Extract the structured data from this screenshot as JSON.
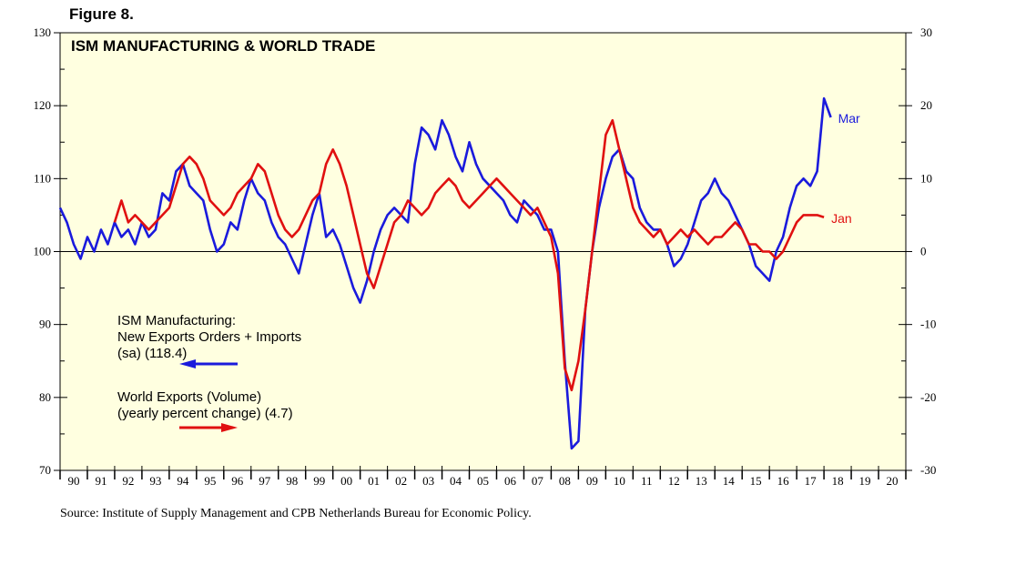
{
  "figure_label": "Figure 8.",
  "source": "Source: Institute of Supply Management and CPB Netherlands Bureau for Economic Policy.",
  "colors": {
    "ism": "#1a1adc",
    "world": "#e01010",
    "plot_bg": "#ffffe0"
  },
  "chart_data": {
    "type": "line",
    "title": "ISM MANUFACTURING & WORLD TRADE",
    "xlim": [
      1990,
      2021
    ],
    "ylim_left": [
      70,
      130
    ],
    "ylim_right": [
      -30,
      30
    ],
    "left_ticks": [
      "70",
      "80",
      "90",
      "100",
      "110",
      "120",
      "130"
    ],
    "right_ticks": [
      "-30",
      "-20",
      "-10",
      "0",
      "10",
      "20",
      "30"
    ],
    "x_tick_labels": [
      "90",
      "91",
      "92",
      "93",
      "94",
      "95",
      "96",
      "97",
      "98",
      "99",
      "00",
      "01",
      "02",
      "03",
      "04",
      "05",
      "06",
      "07",
      "08",
      "09",
      "10",
      "11",
      "12",
      "13",
      "14",
      "15",
      "16",
      "17",
      "18",
      "19",
      "20"
    ],
    "reference_line_right": 0,
    "series": [
      {
        "name": "ISM Manufacturing: New Exports Orders + Imports (sa) (118.4)",
        "axis": "left",
        "end_label": "Mar",
        "x": [
          1990.0,
          1990.25,
          1990.5,
          1990.75,
          1991.0,
          1991.25,
          1991.5,
          1991.75,
          1992.0,
          1992.25,
          1992.5,
          1992.75,
          1993.0,
          1993.25,
          1993.5,
          1993.75,
          1994.0,
          1994.25,
          1994.5,
          1994.75,
          1995.0,
          1995.25,
          1995.5,
          1995.75,
          1996.0,
          1996.25,
          1996.5,
          1996.75,
          1997.0,
          1997.25,
          1997.5,
          1997.75,
          1998.0,
          1998.25,
          1998.5,
          1998.75,
          1999.0,
          1999.25,
          1999.5,
          1999.75,
          2000.0,
          2000.25,
          2000.5,
          2000.75,
          2001.0,
          2001.25,
          2001.5,
          2001.75,
          2002.0,
          2002.25,
          2002.5,
          2002.75,
          2003.0,
          2003.25,
          2003.5,
          2003.75,
          2004.0,
          2004.25,
          2004.5,
          2004.75,
          2005.0,
          2005.25,
          2005.5,
          2005.75,
          2006.0,
          2006.25,
          2006.5,
          2006.75,
          2007.0,
          2007.25,
          2007.5,
          2007.75,
          2008.0,
          2008.25,
          2008.5,
          2008.75,
          2009.0,
          2009.25,
          2009.5,
          2009.75,
          2010.0,
          2010.25,
          2010.5,
          2010.75,
          2011.0,
          2011.25,
          2011.5,
          2011.75,
          2012.0,
          2012.25,
          2012.5,
          2012.75,
          2013.0,
          2013.25,
          2013.5,
          2013.75,
          2014.0,
          2014.25,
          2014.5,
          2014.75,
          2015.0,
          2015.25,
          2015.5,
          2015.75,
          2016.0,
          2016.25,
          2016.5,
          2016.75,
          2017.0,
          2017.25,
          2017.5,
          2017.75,
          2018.0,
          2018.25
        ],
        "values": [
          106,
          104,
          101,
          99,
          102,
          100,
          103,
          101,
          104,
          102,
          103,
          101,
          104,
          102,
          103,
          108,
          107,
          111,
          112,
          109,
          108,
          107,
          103,
          100,
          101,
          104,
          103,
          107,
          110,
          108,
          107,
          104,
          102,
          101,
          99,
          97,
          101,
          105,
          108,
          102,
          103,
          101,
          98,
          95,
          93,
          96,
          100,
          103,
          105,
          106,
          105,
          104,
          112,
          117,
          116,
          114,
          118,
          116,
          113,
          111,
          115,
          112,
          110,
          109,
          108,
          107,
          105,
          104,
          107,
          106,
          105,
          103,
          103,
          100,
          85,
          73,
          74,
          92,
          100,
          106,
          110,
          113,
          114,
          111,
          110,
          106,
          104,
          103,
          103,
          101,
          98,
          99,
          101,
          104,
          107,
          108,
          110,
          108,
          107,
          105,
          103,
          101,
          98,
          97,
          96,
          100,
          102,
          106,
          109,
          110,
          109,
          111,
          121,
          118.4
        ]
      },
      {
        "name": "World Exports (Volume) (yearly percent change) (4.7)",
        "axis": "right",
        "end_label": "Jan",
        "x": [
          1992.0,
          1992.25,
          1992.5,
          1992.75,
          1993.0,
          1993.25,
          1993.5,
          1993.75,
          1994.0,
          1994.25,
          1994.5,
          1994.75,
          1995.0,
          1995.25,
          1995.5,
          1995.75,
          1996.0,
          1996.25,
          1996.5,
          1996.75,
          1997.0,
          1997.25,
          1997.5,
          1997.75,
          1998.0,
          1998.25,
          1998.5,
          1998.75,
          1999.0,
          1999.25,
          1999.5,
          1999.75,
          2000.0,
          2000.25,
          2000.5,
          2000.75,
          2001.0,
          2001.25,
          2001.5,
          2001.75,
          2002.0,
          2002.25,
          2002.5,
          2002.75,
          2003.0,
          2003.25,
          2003.5,
          2003.75,
          2004.0,
          2004.25,
          2004.5,
          2004.75,
          2005.0,
          2005.25,
          2005.5,
          2005.75,
          2006.0,
          2006.25,
          2006.5,
          2006.75,
          2007.0,
          2007.25,
          2007.5,
          2007.75,
          2008.0,
          2008.25,
          2008.5,
          2008.75,
          2009.0,
          2009.25,
          2009.5,
          2009.75,
          2010.0,
          2010.25,
          2010.5,
          2010.75,
          2011.0,
          2011.25,
          2011.5,
          2011.75,
          2012.0,
          2012.25,
          2012.5,
          2012.75,
          2013.0,
          2013.25,
          2013.5,
          2013.75,
          2014.0,
          2014.25,
          2014.5,
          2014.75,
          2015.0,
          2015.25,
          2015.5,
          2015.75,
          2016.0,
          2016.25,
          2016.5,
          2016.75,
          2017.0,
          2017.25,
          2017.5,
          2017.75,
          2018.0
        ],
        "values": [
          4,
          7,
          4,
          5,
          4,
          3,
          4,
          5,
          6,
          9,
          12,
          13,
          12,
          10,
          7,
          6,
          5,
          6,
          8,
          9,
          10,
          12,
          11,
          8,
          5,
          3,
          2,
          3,
          5,
          7,
          8,
          12,
          14,
          12,
          9,
          5,
          1,
          -3,
          -5,
          -2,
          1,
          4,
          5,
          7,
          6,
          5,
          6,
          8,
          9,
          10,
          9,
          7,
          6,
          7,
          8,
          9,
          10,
          9,
          8,
          7,
          6,
          5,
          6,
          4,
          2,
          -3,
          -16,
          -19,
          -15,
          -8,
          0,
          8,
          16,
          18,
          14,
          10,
          6,
          4,
          3,
          2,
          3,
          1,
          2,
          3,
          2,
          3,
          2,
          1,
          2,
          2,
          3,
          4,
          3,
          1,
          1,
          0,
          0,
          -1,
          0,
          2,
          4,
          5,
          5,
          5,
          4.7
        ]
      }
    ],
    "legend": [
      {
        "lines": [
          "ISM Manufacturing:",
          "New Exports Orders + Imports",
          "(sa) (118.4)"
        ],
        "series": 0
      },
      {
        "lines": [
          "World Exports (Volume)",
          "(yearly percent change) (4.7)"
        ],
        "series": 1
      }
    ]
  }
}
